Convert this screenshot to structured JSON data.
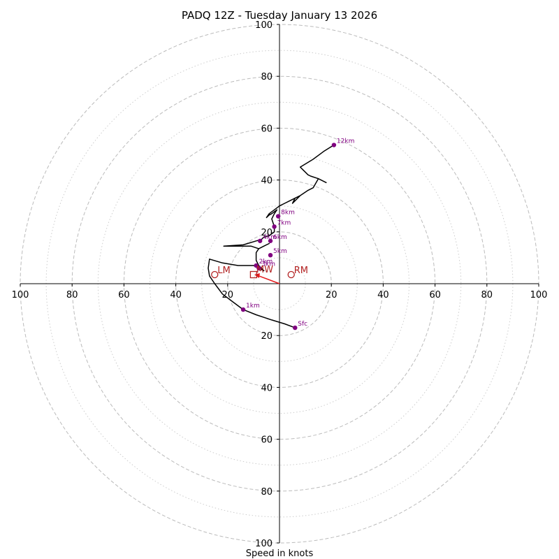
{
  "chart_data": {
    "type": "hodograph",
    "title": "PADQ 12Z - Tuesday January 13 2026",
    "xlabel": "Speed in knots",
    "units": "knots",
    "range": [
      -100,
      100
    ],
    "rings_major": [
      20,
      40,
      60,
      80,
      100
    ],
    "rings_minor": [
      10,
      30,
      50,
      70,
      90
    ],
    "x_tick_labels": [
      "100",
      "80",
      "60",
      "40",
      "20",
      "20",
      "40",
      "60",
      "80",
      "100"
    ],
    "x_tick_values": [
      -100,
      -80,
      -60,
      -40,
      -20,
      20,
      40,
      60,
      80,
      100
    ],
    "y_tick_labels": [
      "100",
      "80",
      "60",
      "40",
      "20",
      "20",
      "40",
      "60",
      "80",
      "100"
    ],
    "y_tick_values": [
      100,
      80,
      60,
      40,
      20,
      -20,
      -40,
      -60,
      -80,
      -100
    ],
    "profile": [
      [
        6,
        -17
      ],
      [
        2,
        -15.5
      ],
      [
        -3,
        -14
      ],
      [
        -9,
        -12
      ],
      [
        -14,
        -10
      ],
      [
        -18,
        -7
      ],
      [
        -22,
        -4
      ],
      [
        -25,
        0
      ],
      [
        -27,
        3
      ],
      [
        -27.5,
        6
      ],
      [
        -27,
        9.5
      ],
      [
        -22,
        8
      ],
      [
        -16,
        7
      ],
      [
        -10,
        7
      ],
      [
        -6,
        5
      ],
      [
        -8,
        7
      ],
      [
        -9,
        9
      ],
      [
        -9,
        12
      ],
      [
        -8,
        13.5
      ],
      [
        -6,
        14.5
      ],
      [
        -4,
        15.5
      ],
      [
        -8,
        13.5
      ],
      [
        -11,
        14.5
      ],
      [
        -14,
        14.5
      ],
      [
        -21.5,
        14.5
      ],
      [
        -14,
        15
      ],
      [
        -9,
        16.5
      ],
      [
        -7,
        17
      ],
      [
        -6,
        18
      ],
      [
        -4,
        18.5
      ],
      [
        -2,
        20
      ],
      [
        -2,
        22
      ],
      [
        -3,
        25
      ],
      [
        -2,
        27
      ],
      [
        -1,
        28.5
      ],
      [
        -3,
        27
      ],
      [
        -4,
        26.5
      ],
      [
        -5,
        25.5
      ],
      [
        -4,
        27
      ],
      [
        -2,
        28.5
      ],
      [
        0,
        30
      ],
      [
        2,
        31
      ],
      [
        4,
        32
      ],
      [
        6,
        33
      ],
      [
        8,
        34
      ],
      [
        6,
        32
      ],
      [
        5,
        31
      ],
      [
        6,
        33
      ],
      [
        8,
        34
      ],
      [
        11,
        36
      ],
      [
        13,
        37
      ],
      [
        15,
        40.5
      ],
      [
        18,
        39
      ],
      [
        15,
        40.5
      ],
      [
        12,
        41.5
      ],
      [
        11,
        42
      ],
      [
        9,
        44
      ],
      [
        8,
        45
      ],
      [
        13,
        48
      ],
      [
        17,
        51
      ],
      [
        21,
        53.5
      ]
    ],
    "height_markers": [
      {
        "label": "Sfc",
        "u": 6,
        "v": -17
      },
      {
        "label": "1km",
        "u": -14,
        "v": -10
      },
      {
        "label": "2km",
        "u": -9,
        "v": 7
      },
      {
        "label": "3km",
        "u": -8,
        "v": 6
      },
      {
        "label": "4km",
        "u": -7.5,
        "v": 16.5
      },
      {
        "label": "5km",
        "u": -3.5,
        "v": 11
      },
      {
        "label": "6km",
        "u": -3.5,
        "v": 16.5
      },
      {
        "label": "7km",
        "u": -2,
        "v": 22
      },
      {
        "label": "8km",
        "u": -0.5,
        "v": 26
      },
      {
        "label": "12km",
        "u": 21,
        "v": 53.5
      }
    ],
    "storm_motions": [
      {
        "label": "RM",
        "u": 4.5,
        "v": 3.5
      },
      {
        "label": "LM",
        "u": -25,
        "v": 3.5
      }
    ],
    "mean_wind": {
      "label": "MW",
      "u": -10,
      "v": 3.5
    },
    "shear_vector": {
      "from_u": 0,
      "from_v": 0,
      "to_u": -10,
      "to_v": 3.5
    },
    "colors": {
      "grid_major": "#bbbbbb",
      "grid_minor": "#cccccc",
      "profile": "#000000",
      "height_marker": "#800080",
      "motion": "#b22222",
      "shear": "#e41a1c",
      "axis": "#000000"
    }
  }
}
